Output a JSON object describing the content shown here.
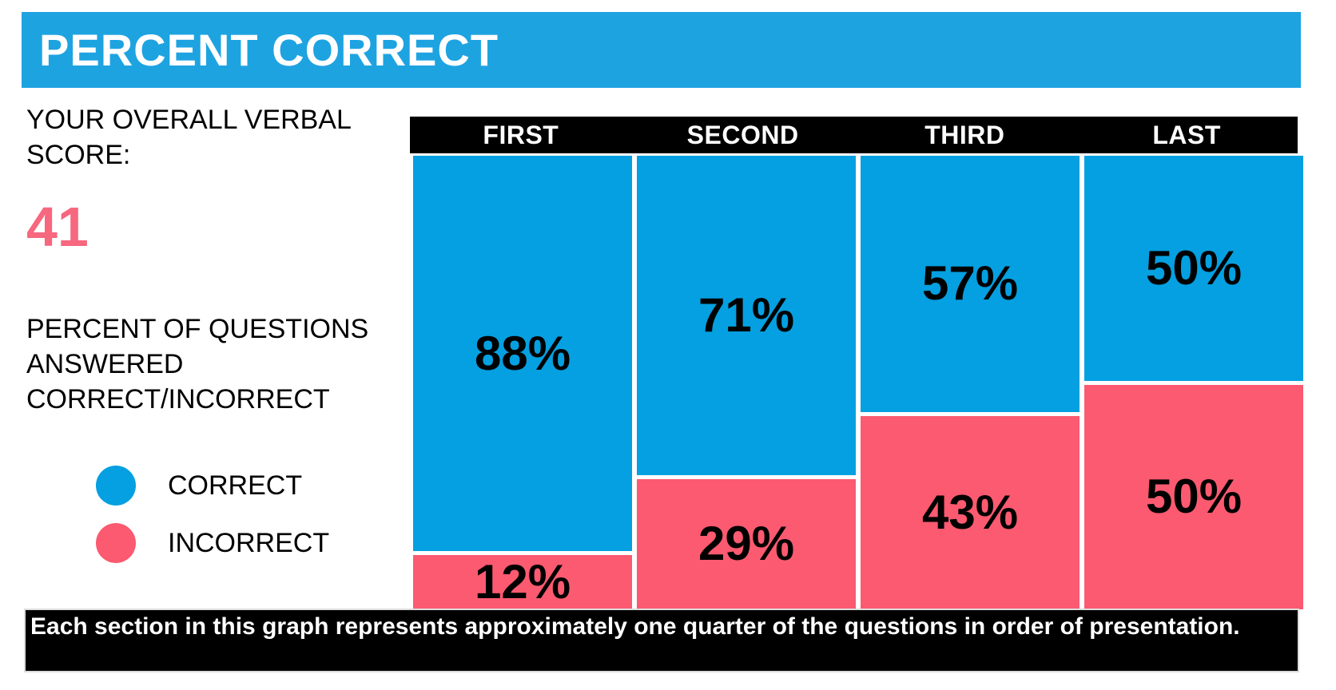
{
  "title": "PERCENT CORRECT",
  "left_panel": {
    "score_label": "YOUR OVERALL VERBAL SCORE:",
    "score_value": "41",
    "subtitle": "PERCENT OF QUESTIONS ANSWERED CORRECT/INCORRECT"
  },
  "chart_data": {
    "type": "bar",
    "stacked": true,
    "orientation": "vertical",
    "title": "PERCENT CORRECT",
    "categories": [
      "FIRST",
      "SECOND",
      "THIRD",
      "LAST"
    ],
    "series": [
      {
        "name": "CORRECT",
        "color": "#04A0E1",
        "values": [
          88,
          71,
          57,
          50
        ],
        "display": [
          "88%",
          "71%",
          "57%",
          "50%"
        ]
      },
      {
        "name": "INCORRECT",
        "color": "#FB5A70",
        "values": [
          12,
          29,
          43,
          50
        ],
        "display": [
          "12%",
          "29%",
          "43%",
          "50%"
        ]
      }
    ],
    "value_suffix": "%",
    "ylim": [
      0,
      100
    ],
    "grid": false,
    "legend_position": "left"
  },
  "footer": {
    "note": "Each section in this graph represents approximately one quarter of the questions in order of presentation."
  },
  "colors": {
    "header_bg": "#1EA3E1",
    "correct": "#04A0E1",
    "incorrect": "#FB5A70",
    "score_text": "#F7677E",
    "column_header_bg": "#000000",
    "footer_bg": "#000000"
  }
}
